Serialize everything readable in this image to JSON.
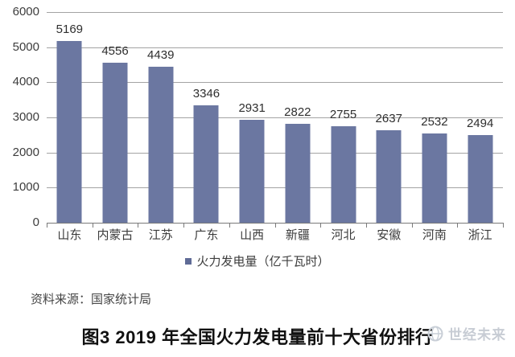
{
  "chart_data": {
    "type": "bar",
    "categories": [
      "山东",
      "内蒙古",
      "江苏",
      "广东",
      "山西",
      "新疆",
      "河北",
      "安徽",
      "河南",
      "浙江"
    ],
    "values": [
      5169,
      4556,
      4439,
      3346,
      2931,
      2822,
      2755,
      2637,
      2532,
      2494
    ],
    "series_name": "火力发电量（亿千瓦时）",
    "ylim": [
      0,
      6000
    ],
    "yticks": [
      0,
      1000,
      2000,
      3000,
      4000,
      5000,
      6000
    ],
    "grid": true,
    "legend_position": "bottom",
    "bar_color": "#6b77a1",
    "value_labels": true,
    "title": "图3 2019 年全国火力发电量前十大省份排行"
  },
  "legend": {
    "marker_color": "#5f6b96",
    "label": "火力发电量（亿千瓦时）"
  },
  "source_note": "资料来源：国家统计局",
  "caption": "图3 2019 年全国火力发电量前十大省份排行",
  "watermark": {
    "icon": "globe-logo",
    "text": "世经未来"
  }
}
